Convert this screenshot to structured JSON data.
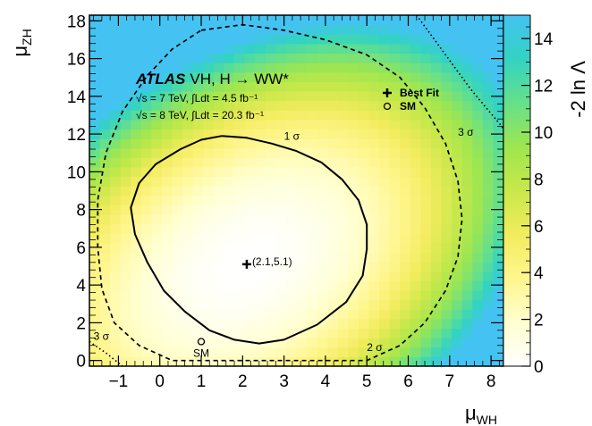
{
  "chart_data": {
    "type": "heatmap",
    "xlabel": "μ",
    "xlabel_sub": "WH",
    "ylabel": "μ",
    "ylabel_sub": "ZH",
    "xlim": [
      -1.7,
      8.3
    ],
    "ylim": [
      -0.3,
      18.3
    ],
    "x_ticks": [
      -1,
      0,
      1,
      2,
      3,
      4,
      5,
      6,
      7,
      8
    ],
    "y_ticks": [
      0,
      2,
      4,
      6,
      8,
      10,
      12,
      14,
      16,
      18
    ],
    "colorbar": {
      "label": "-2 ln Λ",
      "range": [
        0,
        15
      ],
      "ticks": [
        0,
        2,
        4,
        6,
        8,
        10,
        12,
        14
      ],
      "colors": [
        "#ffffff",
        "#ffffd0",
        "#fff68f",
        "#f2ec5e",
        "#c8e84a",
        "#9ee650",
        "#66e08a",
        "#33d3c2",
        "#44c3f3"
      ]
    },
    "best_fit": {
      "x": 2.1,
      "y": 5.1,
      "label": "(2.1,5.1)"
    },
    "sm_point": {
      "x": 1.0,
      "y": 1.0,
      "label": "SM"
    },
    "contours": [
      {
        "name": "1σ",
        "label": "1 σ",
        "style": "solid",
        "label_pos": [
          3.0,
          11.7
        ],
        "points": [
          [
            1.5,
            11.9
          ],
          [
            2.1,
            11.8
          ],
          [
            2.7,
            11.5
          ],
          [
            3.3,
            11.1
          ],
          [
            3.9,
            10.5
          ],
          [
            4.4,
            9.6
          ],
          [
            4.8,
            8.5
          ],
          [
            5.0,
            7.2
          ],
          [
            5.0,
            5.9
          ],
          [
            4.9,
            4.5
          ],
          [
            4.5,
            3.1
          ],
          [
            3.8,
            1.9
          ],
          [
            3.0,
            1.1
          ],
          [
            2.4,
            0.9
          ],
          [
            1.8,
            1.1
          ],
          [
            1.2,
            1.6
          ],
          [
            0.6,
            2.6
          ],
          [
            0.1,
            3.7
          ],
          [
            -0.3,
            5.2
          ],
          [
            -0.6,
            6.7
          ],
          [
            -0.7,
            8.1
          ],
          [
            -0.5,
            9.4
          ],
          [
            -0.1,
            10.4
          ],
          [
            0.5,
            11.2
          ],
          [
            1.0,
            11.7
          ],
          [
            1.5,
            11.9
          ]
        ]
      },
      {
        "name": "2σ",
        "label": "2 σ",
        "style": "dashed",
        "label_pos": [
          5.0,
          0.5
        ],
        "points": [
          [
            1.0,
            17.5
          ],
          [
            2.0,
            17.8
          ],
          [
            3.0,
            17.5
          ],
          [
            4.0,
            17.0
          ],
          [
            5.0,
            16.2
          ],
          [
            5.8,
            15.0
          ],
          [
            6.4,
            13.4
          ],
          [
            6.9,
            11.5
          ],
          [
            7.2,
            9.5
          ],
          [
            7.3,
            7.5
          ],
          [
            7.2,
            5.5
          ],
          [
            6.9,
            3.7
          ],
          [
            6.4,
            2.0
          ],
          [
            5.8,
            0.8
          ],
          [
            5.0,
            0.0
          ],
          [
            0.3,
            0.0
          ],
          [
            -0.5,
            0.8
          ],
          [
            -1.1,
            2.0
          ],
          [
            -1.4,
            3.8
          ],
          [
            -1.5,
            6.0
          ],
          [
            -1.5,
            8.5
          ],
          [
            -1.3,
            11.0
          ],
          [
            -0.9,
            13.2
          ],
          [
            -0.3,
            15.1
          ],
          [
            0.3,
            16.5
          ],
          [
            1.0,
            17.5
          ]
        ]
      },
      {
        "name": "3σ-top",
        "label": "3 σ",
        "style": "dotted",
        "label_pos": [
          7.2,
          11.9
        ],
        "points": [
          [
            6.2,
            18.3
          ],
          [
            6.8,
            16.5
          ],
          [
            7.5,
            14.4
          ],
          [
            8.3,
            12.3
          ]
        ]
      },
      {
        "name": "3σ-bottom",
        "label": "3 σ",
        "style": "dotted",
        "label_pos": [
          -1.6,
          1.1
        ],
        "points": [
          [
            -1.7,
            1.0
          ],
          [
            -1.3,
            0.4
          ],
          [
            -0.9,
            -0.3
          ]
        ]
      }
    ],
    "annotations": {
      "atlas": "ATLAS",
      "process": "VH, H → WW*",
      "line1": "√s = 7 TeV, ∫Ldt = 4.5 fb⁻¹",
      "line2": "√s = 8 TeV, ∫Ldt = 20.3 fb⁻¹"
    },
    "legend": {
      "placement": "top-right",
      "entries": [
        {
          "marker": "cross",
          "label": "Best Fit"
        },
        {
          "marker": "circle",
          "label": "SM"
        }
      ]
    }
  }
}
